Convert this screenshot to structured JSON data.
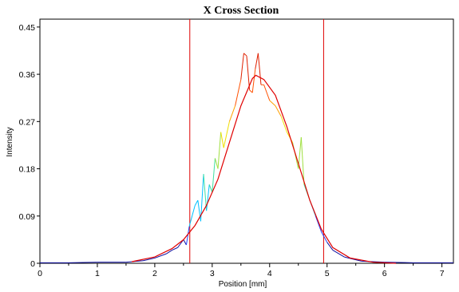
{
  "chart_data": {
    "type": "line",
    "title": "X Cross Section",
    "xlabel": "Position [mm]",
    "ylabel": "Intensity",
    "xlim": [
      0,
      7.2
    ],
    "ylim": [
      0,
      0.465
    ],
    "x_ticks": [
      0,
      1,
      2,
      3,
      4,
      5,
      6,
      7
    ],
    "y_ticks": [
      0,
      0.09,
      0.18,
      0.27,
      0.36,
      0.45
    ],
    "y_tick_labels": [
      "0",
      "0.09",
      "0.18",
      "0.27",
      "0.36",
      "0.45"
    ],
    "grid": false,
    "legend": "none",
    "colors": {
      "fit": "#e00000",
      "markers": "#e00000",
      "profile_scale": [
        "#1010a0",
        "#2040ff",
        "#00c0ff",
        "#40e0a0",
        "#a0e040",
        "#f0e000",
        "#ffa000",
        "#ff5000",
        "#e02000"
      ]
    },
    "vertical_markers": [
      2.61,
      4.94
    ],
    "fit": {
      "shape": "gaussian",
      "peak_x": 3.76,
      "peak_y": 0.358,
      "x": [
        1.6,
        2.0,
        2.3,
        2.5,
        2.7,
        2.9,
        3.1,
        3.3,
        3.5,
        3.7,
        3.76,
        3.9,
        4.1,
        4.3,
        4.5,
        4.7,
        4.9,
        5.1,
        5.4,
        5.8,
        6.2
      ],
      "y": [
        0.003,
        0.012,
        0.028,
        0.045,
        0.072,
        0.11,
        0.16,
        0.23,
        0.3,
        0.352,
        0.358,
        0.35,
        0.32,
        0.26,
        0.19,
        0.12,
        0.065,
        0.03,
        0.01,
        0.002,
        0.0
      ]
    },
    "profile": {
      "x": [
        0.0,
        0.5,
        1.0,
        1.5,
        1.8,
        2.0,
        2.2,
        2.3,
        2.4,
        2.5,
        2.55,
        2.6,
        2.7,
        2.75,
        2.8,
        2.85,
        2.9,
        2.95,
        3.0,
        3.05,
        3.1,
        3.15,
        3.2,
        3.3,
        3.4,
        3.5,
        3.55,
        3.6,
        3.65,
        3.7,
        3.75,
        3.8,
        3.85,
        3.9,
        4.0,
        4.1,
        4.2,
        4.3,
        4.4,
        4.5,
        4.55,
        4.6,
        4.7,
        4.8,
        4.9,
        5.0,
        5.1,
        5.3,
        5.6,
        6.0,
        6.5,
        7.2
      ],
      "y": [
        0.001,
        0.001,
        0.002,
        0.002,
        0.005,
        0.01,
        0.018,
        0.025,
        0.03,
        0.045,
        0.035,
        0.07,
        0.11,
        0.12,
        0.08,
        0.17,
        0.1,
        0.15,
        0.135,
        0.2,
        0.18,
        0.25,
        0.22,
        0.27,
        0.3,
        0.35,
        0.4,
        0.395,
        0.33,
        0.325,
        0.37,
        0.4,
        0.34,
        0.34,
        0.31,
        0.3,
        0.28,
        0.25,
        0.23,
        0.18,
        0.24,
        0.15,
        0.12,
        0.09,
        0.06,
        0.04,
        0.025,
        0.012,
        0.004,
        0.002,
        0.001,
        0.001
      ]
    }
  }
}
